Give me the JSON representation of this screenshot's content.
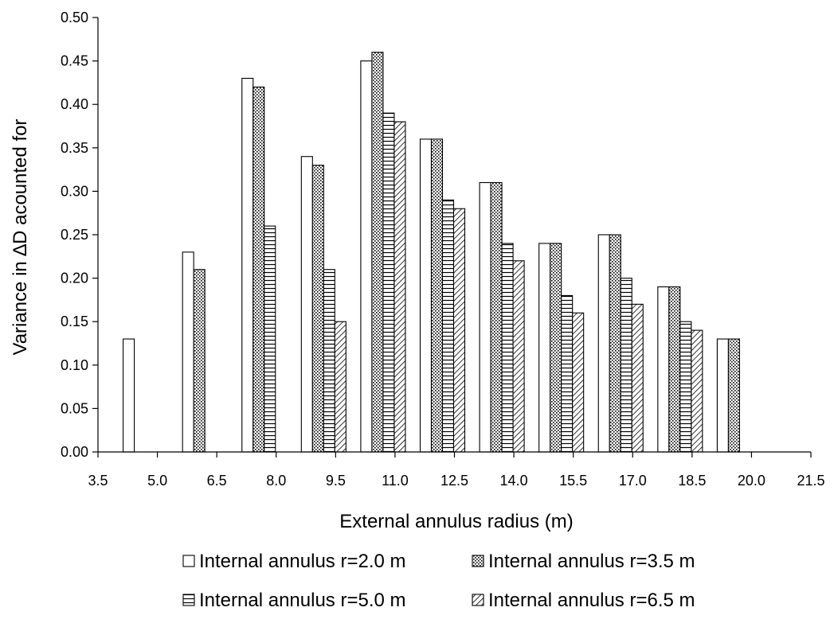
{
  "chart_data": {
    "type": "bar",
    "categories": [
      "5.0",
      "6.5",
      "8.0",
      "9.5",
      "11.0",
      "12.5",
      "14.0",
      "15.5",
      "17.0",
      "18.5",
      "20.0"
    ],
    "x_ticks": [
      "3.5",
      "5.0",
      "6.5",
      "8.0",
      "9.5",
      "11.0",
      "12.5",
      "14.0",
      "15.5",
      "17.0",
      "18.5",
      "20.0",
      "21.5"
    ],
    "y_ticks": [
      "0.00",
      "0.05",
      "0.10",
      "0.15",
      "0.20",
      "0.25",
      "0.30",
      "0.35",
      "0.40",
      "0.45",
      "0.50"
    ],
    "ylim": [
      0,
      0.5
    ],
    "xlabel": "External annulus radius (m)",
    "ylabel": "Variance in ∆D acounted for",
    "grid": false,
    "legend_position": "bottom",
    "series": [
      {
        "name": "Internal annulus r=2.0 m",
        "pattern": "solid-white",
        "values": [
          0.13,
          0.23,
          0.43,
          0.34,
          0.45,
          0.36,
          0.31,
          0.24,
          0.25,
          0.19,
          0.13
        ]
      },
      {
        "name": "Internal annulus r=3.5 m",
        "pattern": "dots",
        "values": [
          null,
          0.21,
          0.42,
          0.33,
          0.46,
          0.36,
          0.31,
          0.24,
          0.25,
          0.19,
          0.13
        ]
      },
      {
        "name": "Internal annulus r=5.0 m",
        "pattern": "horizontal-lines",
        "values": [
          null,
          null,
          0.26,
          0.21,
          0.39,
          0.29,
          0.24,
          0.18,
          0.2,
          0.15,
          null
        ]
      },
      {
        "name": "Internal annulus r=6.5 m",
        "pattern": "diagonal-lines",
        "values": [
          null,
          null,
          null,
          0.15,
          0.38,
          0.28,
          0.22,
          0.16,
          0.17,
          0.14,
          null
        ]
      }
    ]
  }
}
